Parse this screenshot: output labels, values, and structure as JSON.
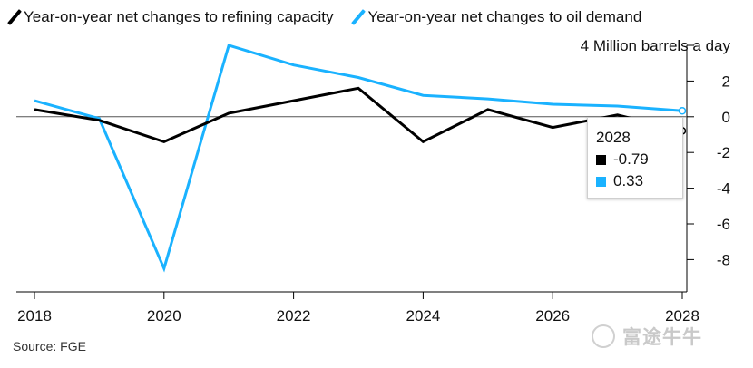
{
  "chart_data": {
    "type": "line",
    "unit_label": "Million barrels a day",
    "x": [
      2018,
      2019,
      2020,
      2021,
      2022,
      2023,
      2024,
      2025,
      2026,
      2027,
      2028
    ],
    "x_ticks": [
      "2018",
      "2020",
      "2022",
      "2024",
      "2026",
      "2028"
    ],
    "y_ticks": [
      "4",
      "2",
      "0",
      "-2",
      "-4",
      "-6",
      "-8"
    ],
    "ylim": [
      -9.3,
      4
    ],
    "series": [
      {
        "name": "Year-on-year net changes to refining capacity",
        "color": "#000000",
        "values": [
          0.4,
          -0.2,
          -1.4,
          0.2,
          0.9,
          1.6,
          -1.4,
          0.4,
          -0.6,
          0.1,
          -0.79
        ]
      },
      {
        "name": "Year-on-year net changes to oil demand",
        "color": "#1ab2ff",
        "values": [
          0.9,
          -0.1,
          -8.5,
          4.0,
          2.9,
          2.2,
          1.2,
          1.0,
          0.7,
          0.6,
          0.33
        ]
      }
    ],
    "tooltip": {
      "year": "2028",
      "values": [
        "-0.79",
        "0.33"
      ]
    },
    "source": "Source: FGE"
  },
  "watermark": {
    "text": "富途牛牛"
  }
}
